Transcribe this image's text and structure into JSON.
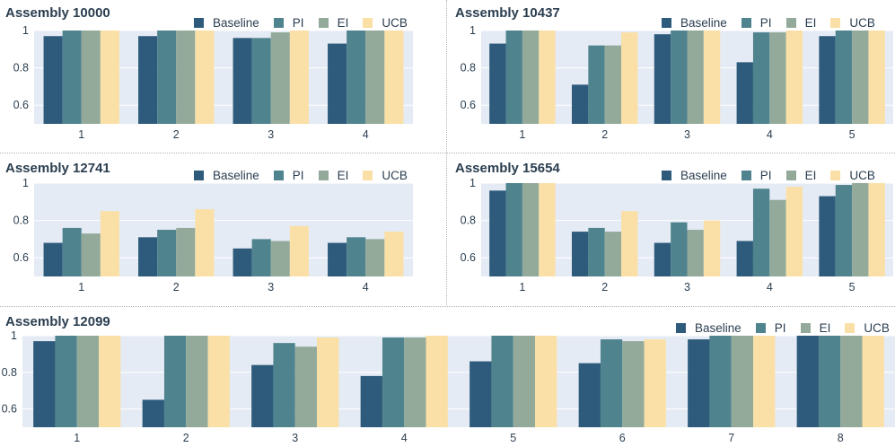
{
  "legend_labels": [
    "Baseline",
    "PI",
    "EI",
    "UCB"
  ],
  "colors": {
    "Baseline": "#2e5b7b",
    "PI": "#4f838d",
    "EI": "#93aa9b",
    "UCB": "#fae0a6",
    "plot_bg": "#e5ebf5",
    "grid": "#ffffff"
  },
  "chart_data": [
    {
      "type": "bar",
      "title": "Assembly 10000",
      "categories": [
        "1",
        "2",
        "3",
        "4"
      ],
      "ylim": [
        0.5,
        1.0
      ],
      "yticks": [
        "0.6",
        "0.8",
        "1"
      ],
      "series": [
        {
          "name": "Baseline",
          "values": [
            0.97,
            0.97,
            0.96,
            0.93
          ]
        },
        {
          "name": "PI",
          "values": [
            1.0,
            1.0,
            0.96,
            1.0
          ]
        },
        {
          "name": "EI",
          "values": [
            1.0,
            1.0,
            0.99,
            1.0
          ]
        },
        {
          "name": "UCB",
          "values": [
            1.0,
            1.0,
            1.0,
            1.0
          ]
        }
      ]
    },
    {
      "type": "bar",
      "title": "Assembly 10437",
      "categories": [
        "1",
        "2",
        "3",
        "4",
        "5"
      ],
      "ylim": [
        0.5,
        1.0
      ],
      "yticks": [
        "0.6",
        "0.8",
        "1"
      ],
      "series": [
        {
          "name": "Baseline",
          "values": [
            0.93,
            0.71,
            0.98,
            0.83,
            0.97
          ]
        },
        {
          "name": "PI",
          "values": [
            1.0,
            0.92,
            1.0,
            0.99,
            1.0
          ]
        },
        {
          "name": "EI",
          "values": [
            1.0,
            0.92,
            1.0,
            0.99,
            1.0
          ]
        },
        {
          "name": "UCB",
          "values": [
            1.0,
            0.99,
            1.0,
            1.0,
            1.0
          ]
        }
      ]
    },
    {
      "type": "bar",
      "title": "Assembly 12741",
      "categories": [
        "1",
        "2",
        "3",
        "4"
      ],
      "ylim": [
        0.5,
        1.0
      ],
      "yticks": [
        "0.6",
        "0.8",
        "1"
      ],
      "series": [
        {
          "name": "Baseline",
          "values": [
            0.68,
            0.71,
            0.65,
            0.68
          ]
        },
        {
          "name": "PI",
          "values": [
            0.76,
            0.75,
            0.7,
            0.71
          ]
        },
        {
          "name": "EI",
          "values": [
            0.73,
            0.76,
            0.69,
            0.7
          ]
        },
        {
          "name": "UCB",
          "values": [
            0.85,
            0.86,
            0.77,
            0.74
          ]
        }
      ]
    },
    {
      "type": "bar",
      "title": "Assembly 15654",
      "categories": [
        "1",
        "2",
        "3",
        "4",
        "5"
      ],
      "ylim": [
        0.5,
        1.0
      ],
      "yticks": [
        "0.6",
        "0.8",
        "1"
      ],
      "series": [
        {
          "name": "Baseline",
          "values": [
            0.96,
            0.74,
            0.68,
            0.69,
            0.93
          ]
        },
        {
          "name": "PI",
          "values": [
            1.0,
            0.76,
            0.79,
            0.97,
            0.99
          ]
        },
        {
          "name": "EI",
          "values": [
            1.0,
            0.74,
            0.75,
            0.91,
            1.0
          ]
        },
        {
          "name": "UCB",
          "values": [
            1.0,
            0.85,
            0.8,
            0.98,
            1.0
          ]
        }
      ]
    },
    {
      "type": "bar",
      "title": "Assembly 12099",
      "categories": [
        "1",
        "2",
        "3",
        "4",
        "5",
        "6",
        "7",
        "8"
      ],
      "ylim": [
        0.5,
        1.0
      ],
      "yticks": [
        "0.6",
        "0.8",
        "1"
      ],
      "series": [
        {
          "name": "Baseline",
          "values": [
            0.97,
            0.65,
            0.84,
            0.78,
            0.86,
            0.85,
            0.98,
            1.0
          ]
        },
        {
          "name": "PI",
          "values": [
            1.0,
            1.0,
            0.96,
            0.99,
            1.0,
            0.98,
            1.0,
            1.0
          ]
        },
        {
          "name": "EI",
          "values": [
            1.0,
            1.0,
            0.94,
            0.99,
            1.0,
            0.97,
            1.0,
            1.0
          ]
        },
        {
          "name": "UCB",
          "values": [
            1.0,
            1.0,
            0.99,
            1.0,
            1.0,
            0.98,
            1.0,
            1.0
          ]
        }
      ]
    }
  ]
}
